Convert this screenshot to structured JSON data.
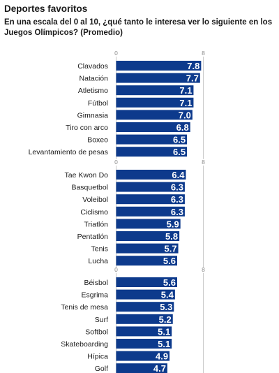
{
  "title": "Deportes favoritos",
  "subtitle": "En una escala del 0 al 10, ¿qué tanto le interesa ver lo siguiente en los Juegos Olímpicos? (Promedio)",
  "colors": {
    "bar": "#0d3a8c",
    "value_text": "#ffffff",
    "grid": "#c9c9c9",
    "label": "#1a1a1a",
    "tick": "#8a8a8a"
  },
  "chart_data": [
    {
      "type": "bar",
      "orientation": "horizontal",
      "xlim": [
        0,
        8
      ],
      "ticks": [
        0,
        8
      ],
      "categories": [
        "Clavados",
        "Natación",
        "Atletismo",
        "Fútbol",
        "Gimnasia",
        "Tiro con arco",
        "Boxeo",
        "Levantamiento de pesas"
      ],
      "values": [
        7.8,
        7.7,
        7.1,
        7.1,
        7.0,
        6.8,
        6.5,
        6.5
      ]
    },
    {
      "type": "bar",
      "orientation": "horizontal",
      "xlim": [
        0,
        8
      ],
      "ticks": [
        0,
        8
      ],
      "categories": [
        "Tae Kwon Do",
        "Basquetbol",
        "Voleibol",
        "Ciclismo",
        "Triatlón",
        "Pentatlón",
        "Tenis",
        "Lucha"
      ],
      "values": [
        6.4,
        6.3,
        6.3,
        6.3,
        5.9,
        5.8,
        5.7,
        5.6
      ]
    },
    {
      "type": "bar",
      "orientation": "horizontal",
      "xlim": [
        0,
        8
      ],
      "ticks": [
        0,
        8
      ],
      "categories": [
        "Béisbol",
        "Esgrima",
        "Tenis de mesa",
        "Surf",
        "Softbol",
        "Skateboarding",
        "Hípica",
        "Golf"
      ],
      "values": [
        5.6,
        5.4,
        5.3,
        5.2,
        5.1,
        5.1,
        4.9,
        4.7
      ]
    }
  ]
}
